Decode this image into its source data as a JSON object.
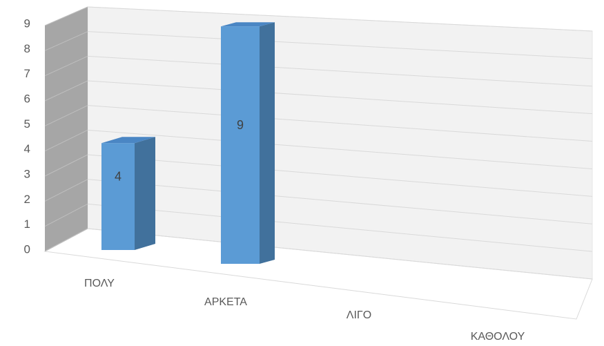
{
  "chart_data": {
    "type": "bar",
    "style": "3d-column",
    "categories": [
      "ΠΟΛΥ",
      "ΑΡΚΕΤΑ",
      "ΛΙΓΟ",
      "ΚΑΘΟΛΟΥ"
    ],
    "values": [
      4,
      9,
      0,
      0
    ],
    "data_labels": [
      "4",
      "9",
      "",
      ""
    ],
    "ylim": [
      0,
      9
    ],
    "yticks": [
      "0",
      "1",
      "2",
      "3",
      "4",
      "5",
      "6",
      "7",
      "8",
      "9"
    ],
    "grid": true,
    "legend": "none",
    "colors": {
      "bar_front": "#5B9BD5",
      "bar_side": "#41719C",
      "bar_top": "#4A86C4",
      "back_wall": "#F2F2F2",
      "side_wall": "#A6A6A6",
      "gridline": "#D9D9D9",
      "text": "#595959"
    }
  }
}
